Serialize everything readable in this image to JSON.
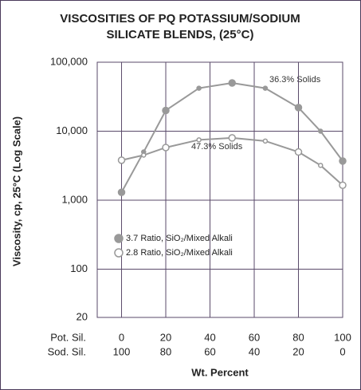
{
  "chart_data": {
    "type": "line",
    "title": [
      "VISCOSITIES OF PQ POTASSIUM/SODIUM",
      "SILICATE BLENDS, (25°C)"
    ],
    "ylabel": "Viscosity, cp, 25°C (Log Scale)",
    "xlabel": "Wt. Percent",
    "row_labels": [
      "Pot. Sil.",
      "Sod. Sil."
    ],
    "xlim": [
      -11,
      100
    ],
    "xticks": [
      0,
      20,
      40,
      60,
      80,
      100
    ],
    "sod_ticks": [
      100,
      80,
      60,
      40,
      20,
      0
    ],
    "ylim": [
      20,
      100000
    ],
    "log_y": true,
    "grid": true,
    "yticks": [
      20,
      100,
      {
        "value": 1000,
        "label": "1,000"
      },
      {
        "value": 10000,
        "label": "10,000"
      },
      {
        "value": 100000,
        "label": "100,000"
      }
    ],
    "series": [
      {
        "name": "3.7 Ratio, SiO₂/Mixed Alkali",
        "color": "#999999",
        "marker": "filled",
        "x": [
          0,
          10,
          20,
          35,
          50,
          65,
          80,
          90,
          100
        ],
        "values": [
          1300,
          5000,
          20000,
          42000,
          50000,
          42000,
          22000,
          10000,
          3700
        ]
      },
      {
        "name": "2.8 Ratio, SiO₂/Mixed Alkali",
        "color": "#999999",
        "marker": "open",
        "x": [
          0,
          10,
          20,
          35,
          50,
          65,
          80,
          90,
          100
        ],
        "values": [
          3800,
          4500,
          5800,
          7500,
          8000,
          7200,
          5000,
          3200,
          1650
        ]
      }
    ],
    "annotations": [
      "36.3% Solids",
      "47.3% Solids"
    ]
  }
}
